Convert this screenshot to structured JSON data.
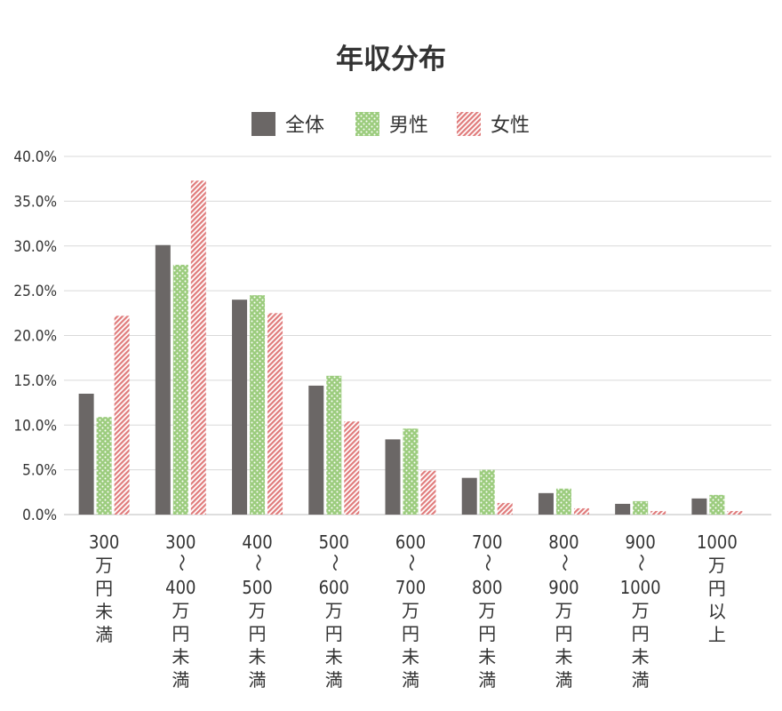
{
  "chart_data": {
    "type": "bar",
    "title": "年収分布",
    "xlabel": "",
    "ylabel": "",
    "ylim": [
      0,
      40
    ],
    "y_ticks": [
      "0.0%",
      "5.0%",
      "10.0%",
      "15.0%",
      "20.0%",
      "25.0%",
      "30.0%",
      "35.0%",
      "40.0%"
    ],
    "grid": true,
    "legend_position": "top-center",
    "categories": [
      "300万円未満",
      "300〜400万円未満",
      "400〜500万円未満",
      "500〜600万円未満",
      "600〜700万円未満",
      "700〜800万円未満",
      "800〜900万円未満",
      "900〜1000万円未満",
      "1000万円以上"
    ],
    "category_lines": [
      [
        "300",
        "万",
        "円",
        "未",
        "満"
      ],
      [
        "300",
        "〜",
        "400",
        "万",
        "円",
        "未",
        "満"
      ],
      [
        "400",
        "〜",
        "500",
        "万",
        "円",
        "未",
        "満"
      ],
      [
        "500",
        "〜",
        "600",
        "万",
        "円",
        "未",
        "満"
      ],
      [
        "600",
        "〜",
        "700",
        "万",
        "円",
        "未",
        "満"
      ],
      [
        "700",
        "〜",
        "800",
        "万",
        "円",
        "未",
        "満"
      ],
      [
        "800",
        "〜",
        "900",
        "万",
        "円",
        "未",
        "満"
      ],
      [
        "900",
        "〜",
        "1000",
        "万",
        "円",
        "未",
        "満"
      ],
      [
        "1000",
        "万",
        "円",
        "以",
        "上"
      ]
    ],
    "series": [
      {
        "name": "全体",
        "color": "#6b6766",
        "pattern": "solid",
        "values": [
          13.5,
          30.1,
          24.0,
          14.4,
          8.4,
          4.1,
          2.4,
          1.2,
          1.8
        ]
      },
      {
        "name": "男性",
        "color": "#9ccc7e",
        "pattern": "dots",
        "values": [
          10.9,
          27.9,
          24.5,
          15.5,
          9.6,
          5.0,
          2.9,
          1.5,
          2.2
        ]
      },
      {
        "name": "女性",
        "color": "#e07b7b",
        "pattern": "diagonal",
        "values": [
          22.2,
          37.3,
          22.5,
          10.4,
          4.9,
          1.3,
          0.7,
          0.4,
          0.4
        ]
      }
    ]
  }
}
